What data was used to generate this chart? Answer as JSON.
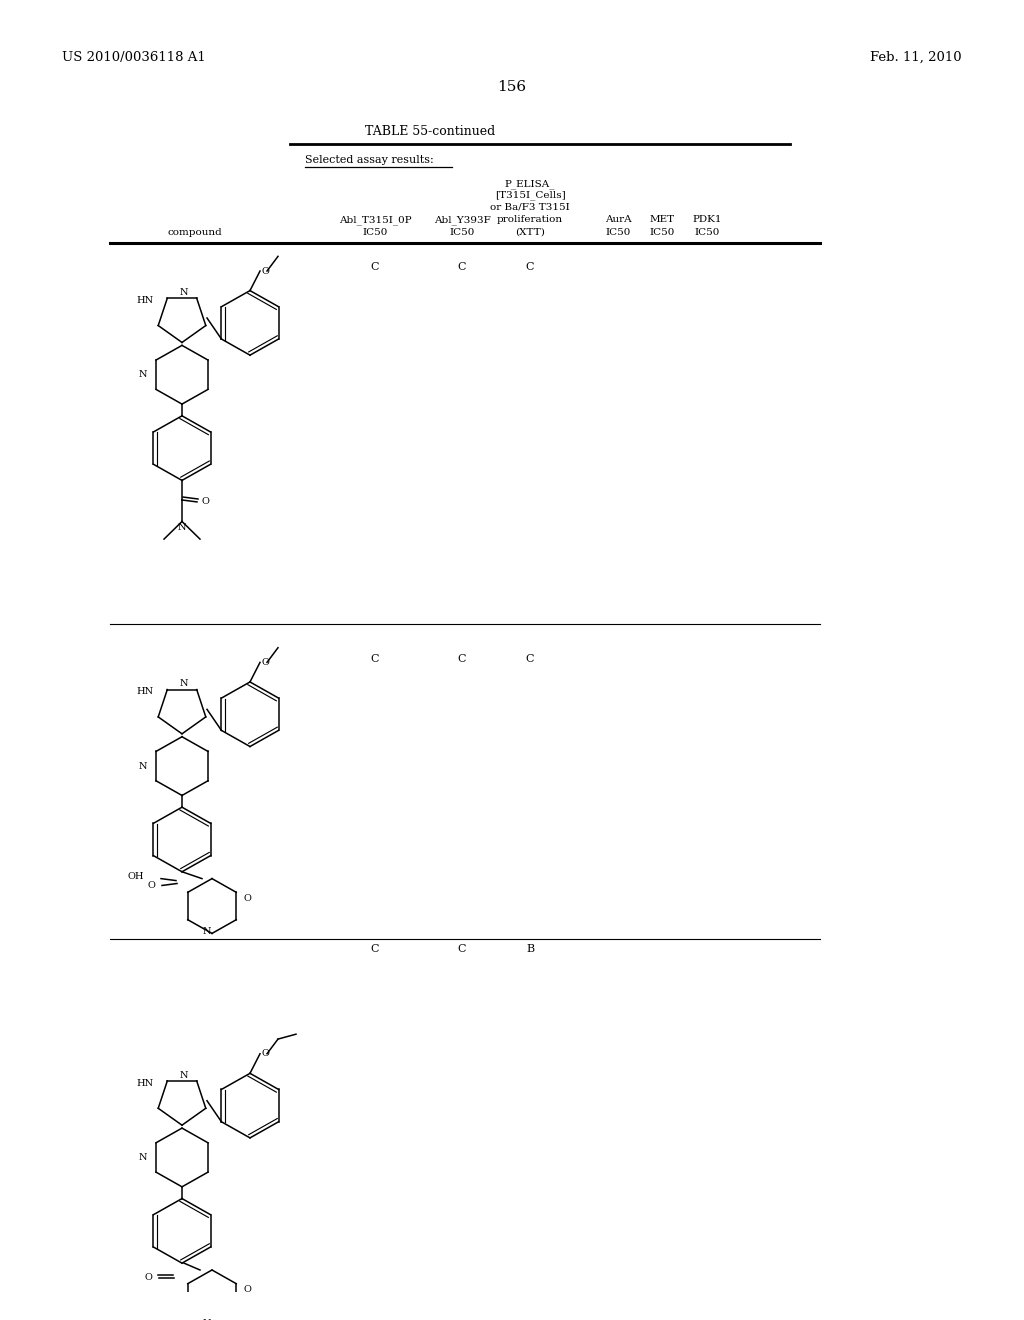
{
  "page_header_left": "US 2010/0036118 A1",
  "page_header_right": "Feb. 11, 2010",
  "page_number": "156",
  "table_title": "TABLE 55-continued",
  "section_label": "Selected assay results:",
  "col_headers": [
    "compound",
    "Abl_T315I_0P\nIC50",
    "Abl_Y393F\nIC50",
    "P_ELISA_\n[T315I_Cells]\nor Ba/F3 T315I\nproliferation\n(XTT)\nIC50",
    "AurA\nIC50",
    "MET\nIC50",
    "PDK1\nIC50"
  ],
  "rows": [
    {
      "abl_t315i": "C",
      "abl_y393f": "C",
      "p_elisa": "C",
      "aura": "",
      "met": "",
      "pdk1": ""
    },
    {
      "abl_t315i": "C",
      "abl_y393f": "C",
      "p_elisa": "C",
      "aura": "",
      "met": "",
      "pdk1": ""
    },
    {
      "abl_t315i": "C",
      "abl_y393f": "C",
      "p_elisa": "B",
      "aura": "",
      "met": "",
      "pdk1": ""
    }
  ],
  "background_color": "#ffffff",
  "text_color": "#000000",
  "line_color": "#000000",
  "font_size_header": 9,
  "font_size_body": 9,
  "font_size_page_header": 10,
  "font_size_title": 10,
  "font_size_page_number": 12
}
